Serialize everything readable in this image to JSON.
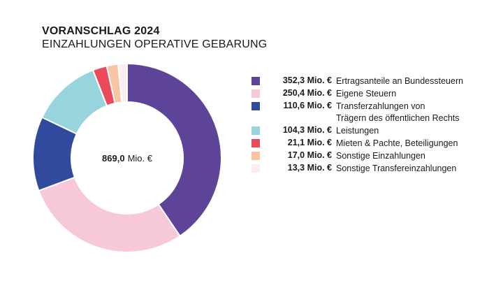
{
  "chart_data": {
    "type": "pie",
    "donut": true,
    "title": "VORANSCHLAG 2024",
    "subtitle": "EINZAHLUNGEN OPERATIVE GEBARUNG",
    "center_label": {
      "value": "869,0",
      "unit": "Mio. €"
    },
    "legend_position": "right",
    "slices": [
      {
        "value": 352.3,
        "value_label": "352,3 Mio. €",
        "label": "Ertragsanteile an Bundessteuern",
        "color": "#5e4499"
      },
      {
        "value": 250.4,
        "value_label": "250,4 Mio. €",
        "label": "Eigene Steuern",
        "color": "#f7c8da"
      },
      {
        "value": 110.6,
        "value_label": "110,6 Mio. €",
        "label": "Transferzahlungen von Trägern des öffentlichen Rechts",
        "label_lines": [
          "Transferzahlungen von",
          "Trägern des öffentlichen Rechts"
        ],
        "color": "#304a9e"
      },
      {
        "value": 104.3,
        "value_label": "104,3 Mio. €",
        "label": "Leistungen",
        "color": "#97d4dd"
      },
      {
        "value": 21.1,
        "value_label": "21,1 Mio. €",
        "label": "Mieten & Pachte, Beteiligungen",
        "color": "#ea4b5a"
      },
      {
        "value": 17.0,
        "value_label": "17,0 Mio. €",
        "label": "Sonstige Einzahlungen",
        "color": "#f8c4a4"
      },
      {
        "value": 13.3,
        "value_label": "13,3 Mio. €",
        "label": "Sonstige Transfereinzahlungen",
        "color": "#fdedf2"
      }
    ]
  }
}
